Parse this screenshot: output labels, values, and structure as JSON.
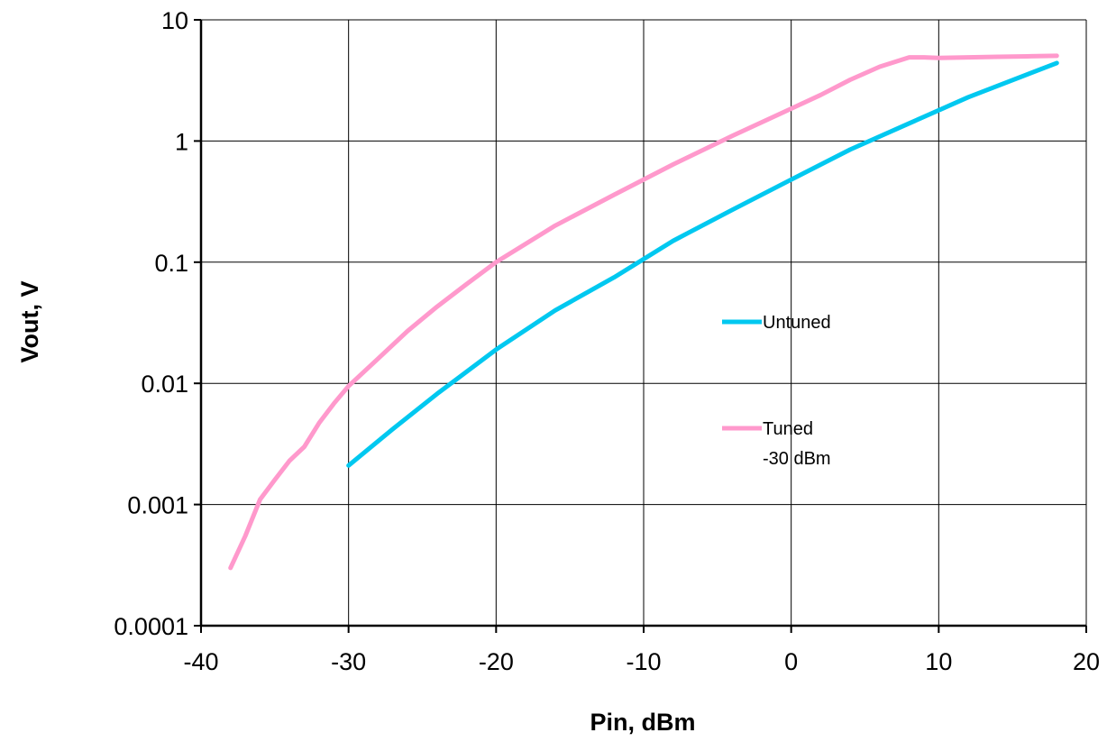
{
  "chart_data": {
    "type": "line",
    "title": "",
    "xlabel": "Pin, dBm",
    "ylabel": "Vout, V",
    "xlim": [
      -40,
      20
    ],
    "ylim": [
      0.0001,
      10
    ],
    "y_scale": "log",
    "grid": true,
    "x_ticks": [
      "-40",
      "-30",
      "-20",
      "-10",
      "0",
      "10",
      "20"
    ],
    "y_ticks": [
      "0.0001",
      "0.001",
      "0.01",
      "0.1",
      "1",
      "10"
    ],
    "legend_position": "inside-right",
    "series": [
      {
        "name": "Untuned",
        "color": "#00c8f0",
        "x": [
          -30,
          -27,
          -24,
          -20,
          -16,
          -12,
          -8,
          -4,
          0,
          4,
          8,
          12,
          18
        ],
        "y": [
          0.0021,
          0.0042,
          0.0082,
          0.019,
          0.04,
          0.075,
          0.15,
          0.27,
          0.48,
          0.85,
          1.4,
          2.3,
          4.4
        ]
      },
      {
        "name": "Tuned\n-30 dBm",
        "label_lines": [
          "Tuned",
          "-30 dBm"
        ],
        "color": "#ff99cc",
        "x": [
          -38,
          -37,
          -36,
          -35,
          -34,
          -33,
          -32,
          -31,
          -30,
          -28,
          -26,
          -24,
          -22,
          -20,
          -16,
          -12,
          -8,
          -4,
          0,
          2,
          4,
          6,
          8,
          9,
          10,
          12,
          14,
          16,
          18
        ],
        "y": [
          0.0003,
          0.00055,
          0.0011,
          0.0016,
          0.0023,
          0.003,
          0.0047,
          0.0068,
          0.0095,
          0.016,
          0.027,
          0.043,
          0.066,
          0.1,
          0.2,
          0.36,
          0.64,
          1.1,
          1.85,
          2.4,
          3.2,
          4.1,
          4.9,
          4.9,
          4.85,
          4.9,
          4.95,
          5.0,
          5.05
        ]
      }
    ]
  }
}
